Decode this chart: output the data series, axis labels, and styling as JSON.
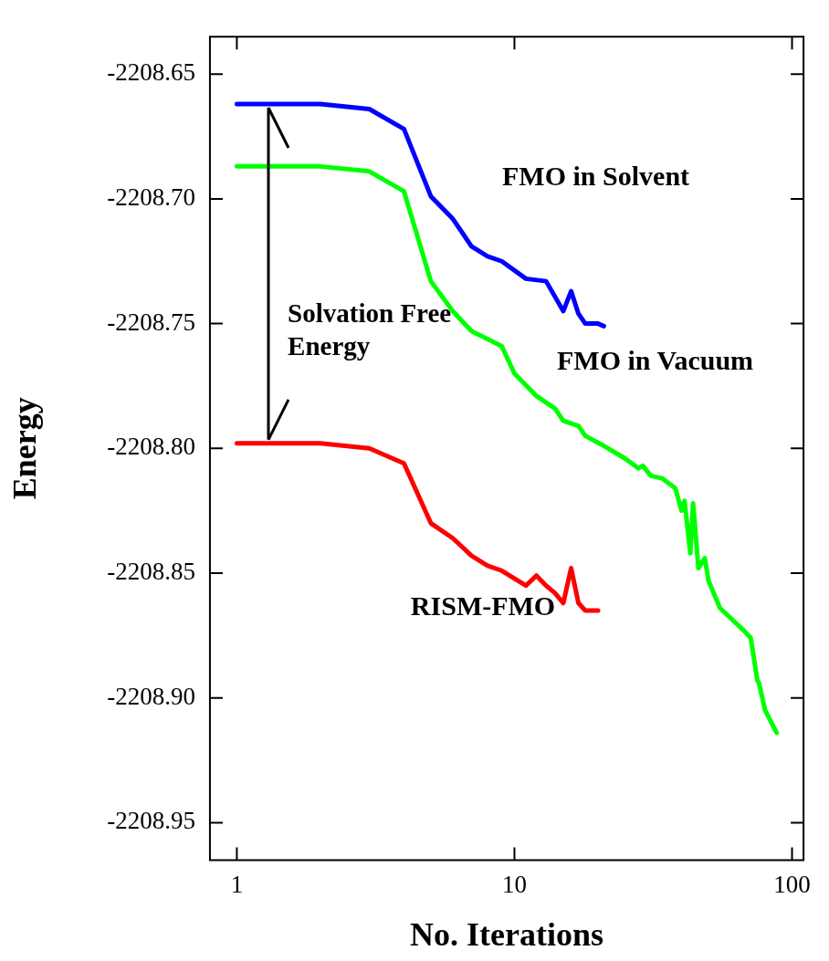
{
  "chart_data": {
    "type": "line",
    "xlabel": "No. Iterations",
    "ylabel": "Energy",
    "log": "x",
    "xlim": [
      0.8,
      110
    ],
    "xticks": [
      1,
      10,
      100
    ],
    "ylim": [
      -2208.965,
      -2208.635
    ],
    "yticks": [
      {
        "value": -2208.65,
        "label": "-2208.65"
      },
      {
        "value": -2208.7,
        "label": "-2208.70"
      },
      {
        "value": -2208.75,
        "label": "-2208.75"
      },
      {
        "value": -2208.8,
        "label": "-2208.80"
      },
      {
        "value": -2208.85,
        "label": "-2208.85"
      },
      {
        "value": -2208.9,
        "label": "-2208.90"
      },
      {
        "value": -2208.95,
        "label": "-2208.95"
      }
    ],
    "grid": false,
    "legend": false,
    "marker": "none",
    "line_style": "solid",
    "series": [
      {
        "name": "FMO in Solvent",
        "color": "#0000ff",
        "x": [
          1,
          2,
          3,
          4,
          5,
          6,
          7,
          8,
          9,
          11,
          13,
          15,
          16,
          17,
          18,
          20,
          21
        ],
        "values": [
          -2208.662,
          -2208.662,
          -2208.664,
          -2208.672,
          -2208.699,
          -2208.708,
          -2208.719,
          -2208.723,
          -2208.725,
          -2208.732,
          -2208.733,
          -2208.745,
          -2208.737,
          -2208.746,
          -2208.75,
          -2208.75,
          -2208.751
        ]
      },
      {
        "name": "FMO in Vacuum",
        "color": "#00ff00",
        "x": [
          1,
          2,
          3,
          4,
          5,
          6,
          7,
          9,
          10,
          12,
          14,
          15,
          17,
          18,
          21,
          25,
          28,
          29,
          31,
          34,
          38,
          40,
          41,
          43,
          44,
          46,
          48.5,
          50,
          55,
          67,
          71,
          75,
          76,
          80,
          88
        ],
        "values": [
          -2208.687,
          -2208.687,
          -2208.689,
          -2208.697,
          -2208.733,
          -2208.745,
          -2208.753,
          -2208.759,
          -2208.77,
          -2208.779,
          -2208.784,
          -2208.789,
          -2208.791,
          -2208.795,
          -2208.799,
          -2208.804,
          -2208.808,
          -2208.807,
          -2208.811,
          -2208.812,
          -2208.816,
          -2208.825,
          -2208.821,
          -2208.842,
          -2208.822,
          -2208.848,
          -2208.844,
          -2208.853,
          -2208.864,
          -2208.873,
          -2208.876,
          -2208.893,
          -2208.894,
          -2208.905,
          -2208.914
        ]
      },
      {
        "name": "RISM-FMO",
        "color": "#ff0000",
        "x": [
          1,
          2,
          3,
          4,
          5,
          6,
          7,
          8,
          9,
          11,
          12,
          13,
          14,
          15,
          16,
          17,
          18,
          20
        ],
        "values": [
          -2208.798,
          -2208.798,
          -2208.8,
          -2208.806,
          -2208.83,
          -2208.836,
          -2208.843,
          -2208.847,
          -2208.849,
          -2208.855,
          -2208.851,
          -2208.855,
          -2208.858,
          -2208.862,
          -2208.848,
          -2208.862,
          -2208.865,
          -2208.865
        ]
      }
    ],
    "annotations": [
      "Solvation Free Energy"
    ]
  }
}
